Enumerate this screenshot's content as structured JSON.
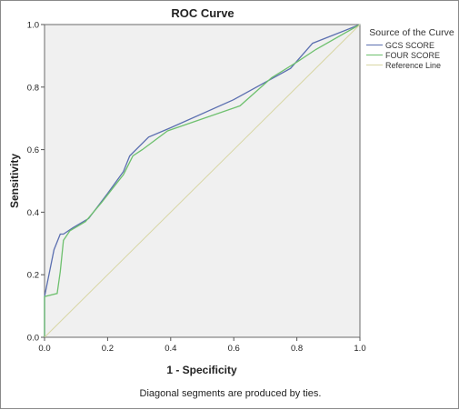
{
  "chart_data": {
    "type": "line",
    "title": "ROC Curve",
    "xlabel": "1 - Specificity",
    "ylabel": "Sensitivity",
    "xlim": [
      0,
      1
    ],
    "ylim": [
      0,
      1
    ],
    "xticks": [
      "0.0",
      "0.2",
      "0.4",
      "0.6",
      "0.8",
      "1.0"
    ],
    "yticks": [
      "0.0",
      "0.2",
      "0.4",
      "0.6",
      "0.8",
      "1.0"
    ],
    "grid": false,
    "legend": {
      "title": "Source of the Curve",
      "placement": "right"
    },
    "series": [
      {
        "name": "GCS SCORE",
        "color": "#5b6fb0",
        "points": [
          [
            0,
            0
          ],
          [
            0,
            0.13
          ],
          [
            0.03,
            0.28
          ],
          [
            0.05,
            0.33
          ],
          [
            0.06,
            0.33
          ],
          [
            0.09,
            0.35
          ],
          [
            0.14,
            0.38
          ],
          [
            0.2,
            0.46
          ],
          [
            0.25,
            0.53
          ],
          [
            0.27,
            0.58
          ],
          [
            0.33,
            0.64
          ],
          [
            0.4,
            0.67
          ],
          [
            0.6,
            0.76
          ],
          [
            0.78,
            0.86
          ],
          [
            0.85,
            0.94
          ],
          [
            1,
            1
          ]
        ]
      },
      {
        "name": "FOUR SCORE",
        "color": "#6ec06e",
        "points": [
          [
            0,
            0
          ],
          [
            0,
            0.13
          ],
          [
            0.04,
            0.14
          ],
          [
            0.05,
            0.21
          ],
          [
            0.06,
            0.31
          ],
          [
            0.08,
            0.34
          ],
          [
            0.13,
            0.37
          ],
          [
            0.18,
            0.43
          ],
          [
            0.25,
            0.52
          ],
          [
            0.28,
            0.58
          ],
          [
            0.31,
            0.6
          ],
          [
            0.39,
            0.66
          ],
          [
            0.62,
            0.74
          ],
          [
            0.72,
            0.83
          ],
          [
            0.8,
            0.88
          ],
          [
            0.86,
            0.92
          ],
          [
            1,
            1
          ]
        ]
      },
      {
        "name": "Reference Line",
        "color": "#d8d6a4",
        "points": [
          [
            0,
            0
          ],
          [
            1,
            1
          ]
        ]
      }
    ],
    "footnote": "Diagonal segments are produced by ties."
  }
}
